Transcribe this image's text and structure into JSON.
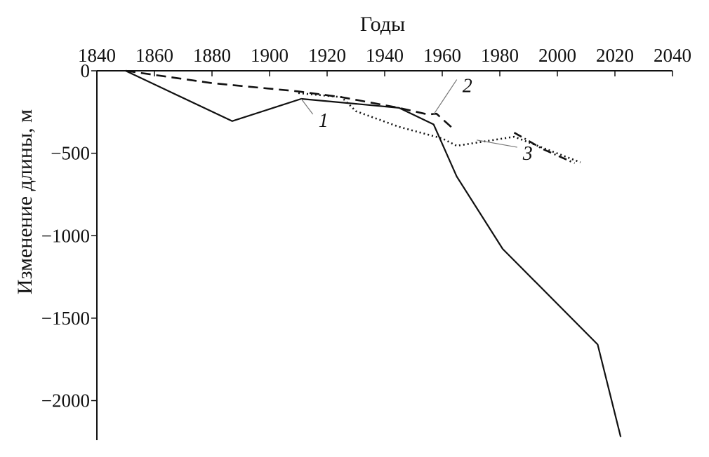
{
  "chart_data": {
    "type": "line",
    "xlabel": "Годы",
    "ylabel": "Изменение длины, м",
    "xlim": [
      1840,
      2040
    ],
    "ylim": [
      -2240,
      0
    ],
    "x_ticks": [
      1840,
      1860,
      1880,
      1900,
      1920,
      1940,
      1960,
      1980,
      2000,
      2020,
      2040
    ],
    "y_ticks": [
      0,
      -500,
      -1000,
      -1500,
      -2000
    ],
    "y_tick_labels": [
      "0",
      "-500",
      "-1000",
      "-1500",
      "-2000"
    ],
    "grid": false,
    "series": [
      {
        "name": "1",
        "style": "solid",
        "x": [
          1850,
          1887,
          1911,
          1930,
          1945,
          1957,
          1965,
          1981,
          2014,
          2022
        ],
        "y": [
          0,
          -305,
          -170,
          -200,
          -225,
          -325,
          -640,
          -1080,
          -1660,
          -2220
        ]
      },
      {
        "name": "2",
        "style": "dashed",
        "x": [
          1850,
          1880,
          1910,
          1925,
          1945,
          1955,
          1958,
          1964
        ],
        "y": [
          0,
          -75,
          -125,
          -160,
          -225,
          -265,
          -260,
          -355
        ]
      },
      {
        "name": "3",
        "style": "dotted",
        "x": [
          1910,
          1925,
          1930,
          1945,
          1960,
          1965,
          1985,
          2008
        ],
        "y": [
          -135,
          -160,
          -245,
          -340,
          -410,
          -455,
          -400,
          -555
        ]
      },
      {
        "name": "",
        "style": "dashdot",
        "x": [
          1985,
          1995,
          2006
        ],
        "y": [
          -375,
          -475,
          -560
        ]
      }
    ],
    "annotations": [
      {
        "text": "1",
        "x": 1917,
        "y": -340,
        "points_to": [
          1911,
          -170
        ]
      },
      {
        "text": "2",
        "x": 1967,
        "y": -130,
        "points_to": [
          1957,
          -265
        ]
      },
      {
        "text": "3",
        "x": 1988,
        "y": -540,
        "points_to": [
          1972,
          -420
        ]
      }
    ]
  }
}
